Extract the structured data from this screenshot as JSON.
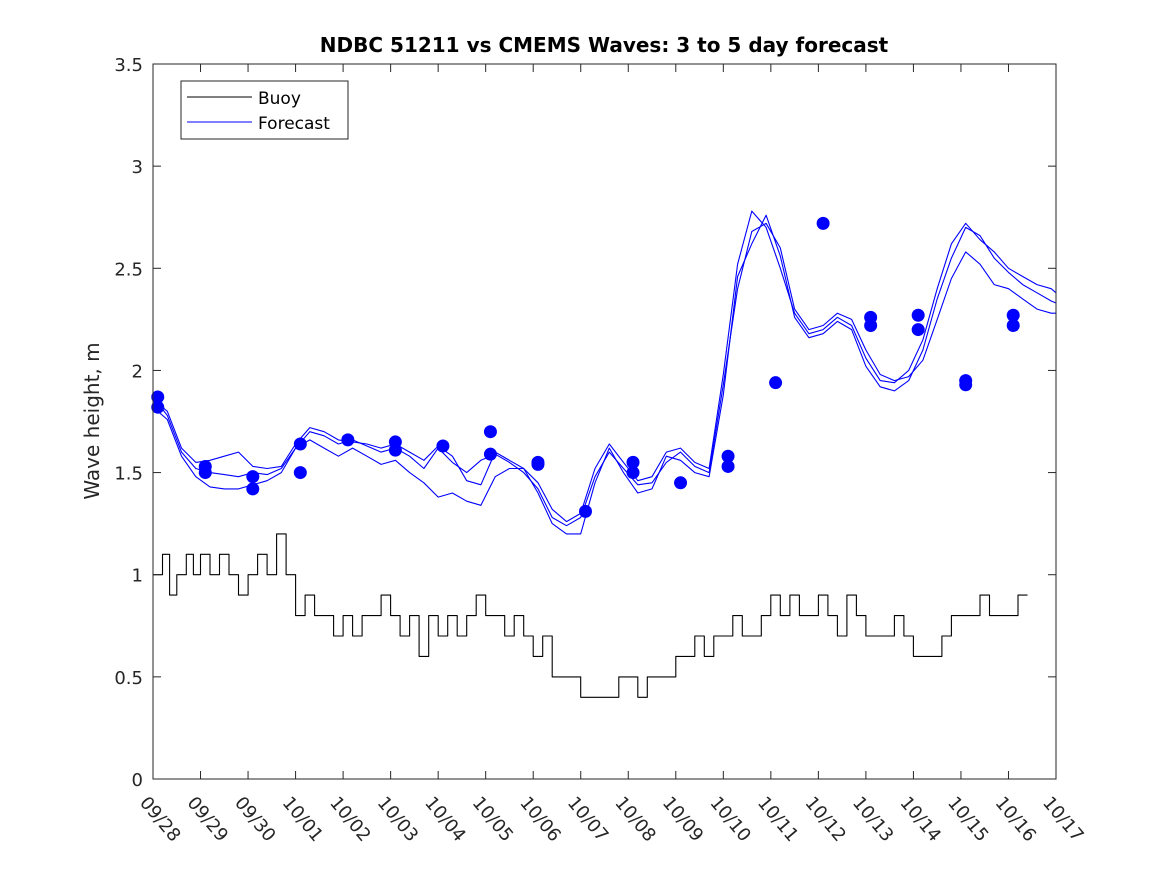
{
  "chart_data": {
    "type": "line",
    "title": "NDBC 51211 vs CMEMS Waves: 3 to 5 day forecast",
    "xlabel": "",
    "ylabel": "Wave height, m",
    "xlim": [
      0,
      19
    ],
    "ylim": [
      0,
      3.5
    ],
    "x_ticks": [
      0,
      1,
      2,
      3,
      4,
      5,
      6,
      7,
      8,
      9,
      10,
      11,
      12,
      13,
      14,
      15,
      16,
      17,
      18,
      19
    ],
    "x_tick_labels": [
      "09/28",
      "09/29",
      "09/30",
      "10/01",
      "10/02",
      "10/03",
      "10/04",
      "10/05",
      "10/06",
      "10/07",
      "10/08",
      "10/09",
      "10/10",
      "10/11",
      "10/12",
      "10/13",
      "10/14",
      "10/15",
      "10/16",
      "10/17"
    ],
    "y_ticks": [
      0,
      0.5,
      1,
      1.5,
      2,
      2.5,
      3,
      3.5
    ],
    "y_tick_labels": [
      "0",
      "0.5",
      "1",
      "1.5",
      "2",
      "2.5",
      "3",
      "3.5"
    ],
    "legend": {
      "position": "top-left",
      "entries": [
        {
          "label": "Buoy",
          "color": "#000000"
        },
        {
          "label": "Forecast",
          "color": "#0000ff"
        }
      ]
    },
    "colors": {
      "buoy": "#000000",
      "forecast": "#0000ff",
      "axes": "#262626"
    },
    "series": [
      {
        "name": "Buoy",
        "x": [
          0,
          0.2,
          0.35,
          0.5,
          0.7,
          0.85,
          1.0,
          1.2,
          1.4,
          1.6,
          1.8,
          2.0,
          2.2,
          2.4,
          2.6,
          2.8,
          3.0,
          3.2,
          3.4,
          3.6,
          3.8,
          4.0,
          4.2,
          4.4,
          4.6,
          4.8,
          5.0,
          5.2,
          5.4,
          5.6,
          5.8,
          6.0,
          6.2,
          6.4,
          6.6,
          6.8,
          7.0,
          7.2,
          7.4,
          7.6,
          7.8,
          8.0,
          8.2,
          8.4,
          8.6,
          8.8,
          9.0,
          9.2,
          9.4,
          9.6,
          9.8,
          10.0,
          10.2,
          10.4,
          10.6,
          10.8,
          11.0,
          11.2,
          11.4,
          11.6,
          11.8,
          12.0,
          12.2,
          12.4,
          12.6,
          12.8,
          13.0,
          13.2,
          13.4,
          13.6,
          13.8,
          14.0,
          14.2,
          14.4,
          14.6,
          14.8,
          15.0,
          15.2,
          15.4,
          15.6,
          15.8,
          16.0,
          16.2,
          16.4,
          16.6,
          16.8,
          17.0,
          17.2,
          17.4,
          17.6,
          17.8,
          18.0,
          18.2,
          18.4
        ],
        "values": [
          1.0,
          1.1,
          0.9,
          1.0,
          1.1,
          1.0,
          1.1,
          1.0,
          1.1,
          1.0,
          0.9,
          1.0,
          1.1,
          1.0,
          1.2,
          1.0,
          0.8,
          0.9,
          0.8,
          0.8,
          0.7,
          0.8,
          0.7,
          0.8,
          0.8,
          0.9,
          0.8,
          0.7,
          0.8,
          0.6,
          0.8,
          0.7,
          0.8,
          0.7,
          0.8,
          0.9,
          0.8,
          0.8,
          0.7,
          0.8,
          0.7,
          0.6,
          0.7,
          0.5,
          0.5,
          0.5,
          0.4,
          0.4,
          0.4,
          0.4,
          0.5,
          0.5,
          0.4,
          0.5,
          0.5,
          0.5,
          0.6,
          0.6,
          0.7,
          0.6,
          0.7,
          0.7,
          0.8,
          0.7,
          0.7,
          0.8,
          0.9,
          0.8,
          0.9,
          0.8,
          0.8,
          0.9,
          0.8,
          0.7,
          0.9,
          0.8,
          0.7,
          0.7,
          0.7,
          0.8,
          0.7,
          0.6,
          0.6,
          0.6,
          0.7,
          0.8,
          0.8,
          0.8,
          0.9,
          0.8,
          0.8,
          0.8,
          0.9,
          0.9
        ]
      },
      {
        "name": "Forecast 1",
        "x": [
          0,
          0.3,
          0.6,
          0.9,
          1.2,
          1.5,
          1.8,
          2.1,
          2.4,
          2.7,
          3.0,
          3.3,
          3.6,
          3.9,
          4.2,
          4.5,
          4.8,
          5.1,
          5.4,
          5.7,
          6.0,
          6.3,
          6.6,
          6.9,
          7.2,
          7.5,
          7.8,
          8.1,
          8.4,
          8.7,
          9.0,
          9.3,
          9.6,
          9.9,
          10.2,
          10.5,
          10.8,
          11.1,
          11.4,
          11.7,
          12.0,
          12.3,
          12.6,
          12.9,
          13.2,
          13.5,
          13.8,
          14.1,
          14.4,
          14.7,
          15.0,
          15.3,
          15.6,
          15.9,
          16.2,
          16.5,
          16.8,
          17.1,
          17.4,
          17.7,
          18.0,
          18.3,
          18.6,
          18.9,
          19.0
        ],
        "values": [
          1.87,
          1.78,
          1.6,
          1.52,
          1.5,
          1.49,
          1.48,
          1.5,
          1.49,
          1.52,
          1.62,
          1.7,
          1.68,
          1.64,
          1.66,
          1.63,
          1.6,
          1.62,
          1.58,
          1.52,
          1.62,
          1.55,
          1.5,
          1.56,
          1.59,
          1.55,
          1.5,
          1.42,
          1.28,
          1.24,
          1.28,
          1.48,
          1.6,
          1.52,
          1.44,
          1.45,
          1.55,
          1.6,
          1.53,
          1.5,
          1.93,
          2.4,
          2.68,
          2.72,
          2.6,
          2.3,
          2.2,
          2.22,
          2.28,
          2.25,
          2.1,
          1.98,
          1.95,
          1.97,
          2.05,
          2.25,
          2.45,
          2.58,
          2.52,
          2.42,
          2.4,
          2.35,
          2.3,
          2.28,
          2.28
        ]
      },
      {
        "name": "Forecast 2",
        "x": [
          0,
          0.3,
          0.6,
          0.9,
          1.2,
          1.5,
          1.8,
          2.1,
          2.4,
          2.7,
          3.0,
          3.3,
          3.6,
          3.9,
          4.2,
          4.5,
          4.8,
          5.1,
          5.4,
          5.7,
          6.0,
          6.3,
          6.6,
          6.9,
          7.2,
          7.5,
          7.8,
          8.1,
          8.4,
          8.7,
          9.0,
          9.3,
          9.6,
          9.9,
          10.2,
          10.5,
          10.8,
          11.1,
          11.4,
          11.7,
          12.0,
          12.3,
          12.6,
          12.9,
          13.2,
          13.5,
          13.8,
          14.1,
          14.4,
          14.7,
          15.0,
          15.3,
          15.6,
          15.9,
          16.2,
          16.5,
          16.8,
          17.1,
          17.4,
          17.7,
          18.0,
          18.3,
          18.6,
          18.9,
          19.0
        ],
        "values": [
          1.82,
          1.76,
          1.58,
          1.48,
          1.43,
          1.42,
          1.42,
          1.44,
          1.46,
          1.5,
          1.62,
          1.66,
          1.62,
          1.58,
          1.62,
          1.58,
          1.54,
          1.56,
          1.5,
          1.45,
          1.38,
          1.4,
          1.36,
          1.34,
          1.48,
          1.52,
          1.52,
          1.4,
          1.25,
          1.2,
          1.2,
          1.45,
          1.62,
          1.5,
          1.4,
          1.42,
          1.58,
          1.56,
          1.5,
          1.48,
          1.88,
          2.46,
          2.62,
          2.76,
          2.56,
          2.26,
          2.16,
          2.18,
          2.24,
          2.2,
          2.02,
          1.92,
          1.9,
          1.95,
          2.1,
          2.35,
          2.55,
          2.7,
          2.66,
          2.55,
          2.48,
          2.42,
          2.38,
          2.34,
          2.33
        ]
      },
      {
        "name": "Forecast 3",
        "x": [
          0,
          0.3,
          0.6,
          0.9,
          1.2,
          1.5,
          1.8,
          2.1,
          2.4,
          2.7,
          3.0,
          3.3,
          3.6,
          3.9,
          4.2,
          4.5,
          4.8,
          5.1,
          5.4,
          5.7,
          6.0,
          6.3,
          6.6,
          6.9,
          7.2,
          7.5,
          7.8,
          8.1,
          8.4,
          8.7,
          9.0,
          9.3,
          9.6,
          9.9,
          10.2,
          10.5,
          10.8,
          11.1,
          11.4,
          11.7,
          12.0,
          12.3,
          12.6,
          12.9,
          13.2,
          13.5,
          13.8,
          14.1,
          14.4,
          14.7,
          15.0,
          15.3,
          15.6,
          15.9,
          16.2,
          16.5,
          16.8,
          17.1,
          17.4,
          17.7,
          18.0,
          18.3,
          18.6,
          18.9,
          19.0
        ],
        "values": [
          1.86,
          1.8,
          1.62,
          1.55,
          1.56,
          1.58,
          1.6,
          1.53,
          1.52,
          1.53,
          1.64,
          1.72,
          1.7,
          1.66,
          1.65,
          1.64,
          1.62,
          1.64,
          1.6,
          1.56,
          1.63,
          1.58,
          1.46,
          1.44,
          1.6,
          1.56,
          1.52,
          1.45,
          1.32,
          1.26,
          1.3,
          1.52,
          1.64,
          1.55,
          1.46,
          1.48,
          1.6,
          1.62,
          1.55,
          1.52,
          1.98,
          2.52,
          2.78,
          2.7,
          2.5,
          2.28,
          2.18,
          2.2,
          2.26,
          2.22,
          2.06,
          1.95,
          1.94,
          2.0,
          2.15,
          2.4,
          2.62,
          2.72,
          2.64,
          2.58,
          2.5,
          2.46,
          2.42,
          2.4,
          2.38
        ]
      }
    ],
    "markers": {
      "name": "Forecast",
      "x": [
        0.1,
        0.1,
        1.1,
        1.1,
        2.1,
        2.1,
        3.1,
        3.1,
        4.1,
        5.1,
        5.1,
        6.1,
        7.1,
        7.1,
        8.1,
        8.1,
        9.1,
        10.1,
        10.1,
        11.1,
        12.1,
        12.1,
        13.1,
        14.1,
        15.1,
        15.1,
        16.1,
        16.1,
        17.1,
        17.1,
        18.1,
        18.1
      ],
      "values": [
        1.82,
        1.87,
        1.5,
        1.53,
        1.42,
        1.48,
        1.5,
        1.64,
        1.66,
        1.61,
        1.65,
        1.63,
        1.59,
        1.7,
        1.54,
        1.55,
        1.31,
        1.5,
        1.55,
        1.45,
        1.53,
        1.58,
        1.94,
        2.72,
        2.22,
        2.26,
        2.2,
        2.27,
        1.93,
        1.95,
        2.22,
        2.27
      ]
    }
  }
}
